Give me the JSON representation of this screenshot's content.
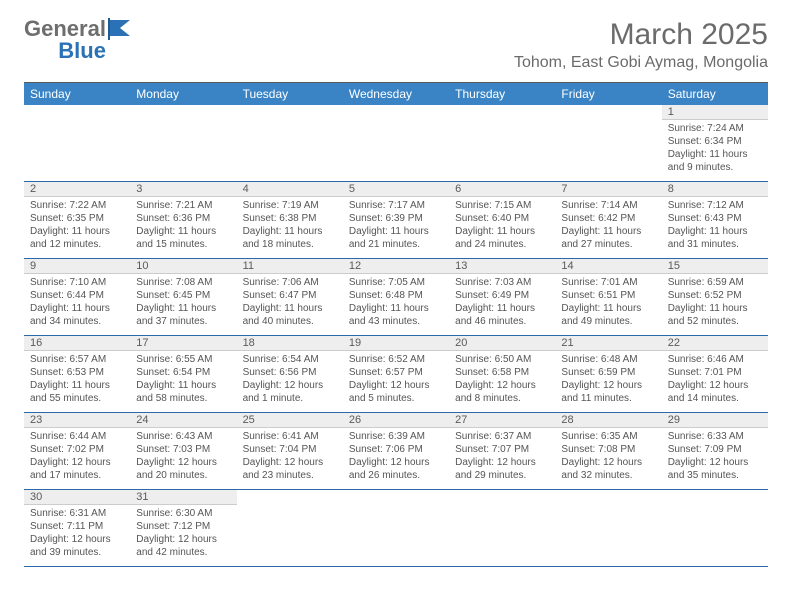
{
  "logo": {
    "word1": "General",
    "word2": "Blue"
  },
  "title": "March 2025",
  "location": "Tohom, East Gobi Aymag, Mongolia",
  "dayNames": [
    "Sunday",
    "Monday",
    "Tuesday",
    "Wednesday",
    "Thursday",
    "Friday",
    "Saturday"
  ],
  "colors": {
    "headerBg": "#3a84c6",
    "rowBorder": "#2a6aa8",
    "dayNumBg": "#eeeeee",
    "text": "#555555"
  },
  "weeks": [
    [
      null,
      null,
      null,
      null,
      null,
      null,
      {
        "n": "1",
        "sr": "Sunrise: 7:24 AM",
        "ss": "Sunset: 6:34 PM",
        "dl1": "Daylight: 11 hours",
        "dl2": "and 9 minutes."
      }
    ],
    [
      {
        "n": "2",
        "sr": "Sunrise: 7:22 AM",
        "ss": "Sunset: 6:35 PM",
        "dl1": "Daylight: 11 hours",
        "dl2": "and 12 minutes."
      },
      {
        "n": "3",
        "sr": "Sunrise: 7:21 AM",
        "ss": "Sunset: 6:36 PM",
        "dl1": "Daylight: 11 hours",
        "dl2": "and 15 minutes."
      },
      {
        "n": "4",
        "sr": "Sunrise: 7:19 AM",
        "ss": "Sunset: 6:38 PM",
        "dl1": "Daylight: 11 hours",
        "dl2": "and 18 minutes."
      },
      {
        "n": "5",
        "sr": "Sunrise: 7:17 AM",
        "ss": "Sunset: 6:39 PM",
        "dl1": "Daylight: 11 hours",
        "dl2": "and 21 minutes."
      },
      {
        "n": "6",
        "sr": "Sunrise: 7:15 AM",
        "ss": "Sunset: 6:40 PM",
        "dl1": "Daylight: 11 hours",
        "dl2": "and 24 minutes."
      },
      {
        "n": "7",
        "sr": "Sunrise: 7:14 AM",
        "ss": "Sunset: 6:42 PM",
        "dl1": "Daylight: 11 hours",
        "dl2": "and 27 minutes."
      },
      {
        "n": "8",
        "sr": "Sunrise: 7:12 AM",
        "ss": "Sunset: 6:43 PM",
        "dl1": "Daylight: 11 hours",
        "dl2": "and 31 minutes."
      }
    ],
    [
      {
        "n": "9",
        "sr": "Sunrise: 7:10 AM",
        "ss": "Sunset: 6:44 PM",
        "dl1": "Daylight: 11 hours",
        "dl2": "and 34 minutes."
      },
      {
        "n": "10",
        "sr": "Sunrise: 7:08 AM",
        "ss": "Sunset: 6:45 PM",
        "dl1": "Daylight: 11 hours",
        "dl2": "and 37 minutes."
      },
      {
        "n": "11",
        "sr": "Sunrise: 7:06 AM",
        "ss": "Sunset: 6:47 PM",
        "dl1": "Daylight: 11 hours",
        "dl2": "and 40 minutes."
      },
      {
        "n": "12",
        "sr": "Sunrise: 7:05 AM",
        "ss": "Sunset: 6:48 PM",
        "dl1": "Daylight: 11 hours",
        "dl2": "and 43 minutes."
      },
      {
        "n": "13",
        "sr": "Sunrise: 7:03 AM",
        "ss": "Sunset: 6:49 PM",
        "dl1": "Daylight: 11 hours",
        "dl2": "and 46 minutes."
      },
      {
        "n": "14",
        "sr": "Sunrise: 7:01 AM",
        "ss": "Sunset: 6:51 PM",
        "dl1": "Daylight: 11 hours",
        "dl2": "and 49 minutes."
      },
      {
        "n": "15",
        "sr": "Sunrise: 6:59 AM",
        "ss": "Sunset: 6:52 PM",
        "dl1": "Daylight: 11 hours",
        "dl2": "and 52 minutes."
      }
    ],
    [
      {
        "n": "16",
        "sr": "Sunrise: 6:57 AM",
        "ss": "Sunset: 6:53 PM",
        "dl1": "Daylight: 11 hours",
        "dl2": "and 55 minutes."
      },
      {
        "n": "17",
        "sr": "Sunrise: 6:55 AM",
        "ss": "Sunset: 6:54 PM",
        "dl1": "Daylight: 11 hours",
        "dl2": "and 58 minutes."
      },
      {
        "n": "18",
        "sr": "Sunrise: 6:54 AM",
        "ss": "Sunset: 6:56 PM",
        "dl1": "Daylight: 12 hours",
        "dl2": "and 1 minute."
      },
      {
        "n": "19",
        "sr": "Sunrise: 6:52 AM",
        "ss": "Sunset: 6:57 PM",
        "dl1": "Daylight: 12 hours",
        "dl2": "and 5 minutes."
      },
      {
        "n": "20",
        "sr": "Sunrise: 6:50 AM",
        "ss": "Sunset: 6:58 PM",
        "dl1": "Daylight: 12 hours",
        "dl2": "and 8 minutes."
      },
      {
        "n": "21",
        "sr": "Sunrise: 6:48 AM",
        "ss": "Sunset: 6:59 PM",
        "dl1": "Daylight: 12 hours",
        "dl2": "and 11 minutes."
      },
      {
        "n": "22",
        "sr": "Sunrise: 6:46 AM",
        "ss": "Sunset: 7:01 PM",
        "dl1": "Daylight: 12 hours",
        "dl2": "and 14 minutes."
      }
    ],
    [
      {
        "n": "23",
        "sr": "Sunrise: 6:44 AM",
        "ss": "Sunset: 7:02 PM",
        "dl1": "Daylight: 12 hours",
        "dl2": "and 17 minutes."
      },
      {
        "n": "24",
        "sr": "Sunrise: 6:43 AM",
        "ss": "Sunset: 7:03 PM",
        "dl1": "Daylight: 12 hours",
        "dl2": "and 20 minutes."
      },
      {
        "n": "25",
        "sr": "Sunrise: 6:41 AM",
        "ss": "Sunset: 7:04 PM",
        "dl1": "Daylight: 12 hours",
        "dl2": "and 23 minutes."
      },
      {
        "n": "26",
        "sr": "Sunrise: 6:39 AM",
        "ss": "Sunset: 7:06 PM",
        "dl1": "Daylight: 12 hours",
        "dl2": "and 26 minutes."
      },
      {
        "n": "27",
        "sr": "Sunrise: 6:37 AM",
        "ss": "Sunset: 7:07 PM",
        "dl1": "Daylight: 12 hours",
        "dl2": "and 29 minutes."
      },
      {
        "n": "28",
        "sr": "Sunrise: 6:35 AM",
        "ss": "Sunset: 7:08 PM",
        "dl1": "Daylight: 12 hours",
        "dl2": "and 32 minutes."
      },
      {
        "n": "29",
        "sr": "Sunrise: 6:33 AM",
        "ss": "Sunset: 7:09 PM",
        "dl1": "Daylight: 12 hours",
        "dl2": "and 35 minutes."
      }
    ],
    [
      {
        "n": "30",
        "sr": "Sunrise: 6:31 AM",
        "ss": "Sunset: 7:11 PM",
        "dl1": "Daylight: 12 hours",
        "dl2": "and 39 minutes."
      },
      {
        "n": "31",
        "sr": "Sunrise: 6:30 AM",
        "ss": "Sunset: 7:12 PM",
        "dl1": "Daylight: 12 hours",
        "dl2": "and 42 minutes."
      },
      null,
      null,
      null,
      null,
      null
    ]
  ]
}
